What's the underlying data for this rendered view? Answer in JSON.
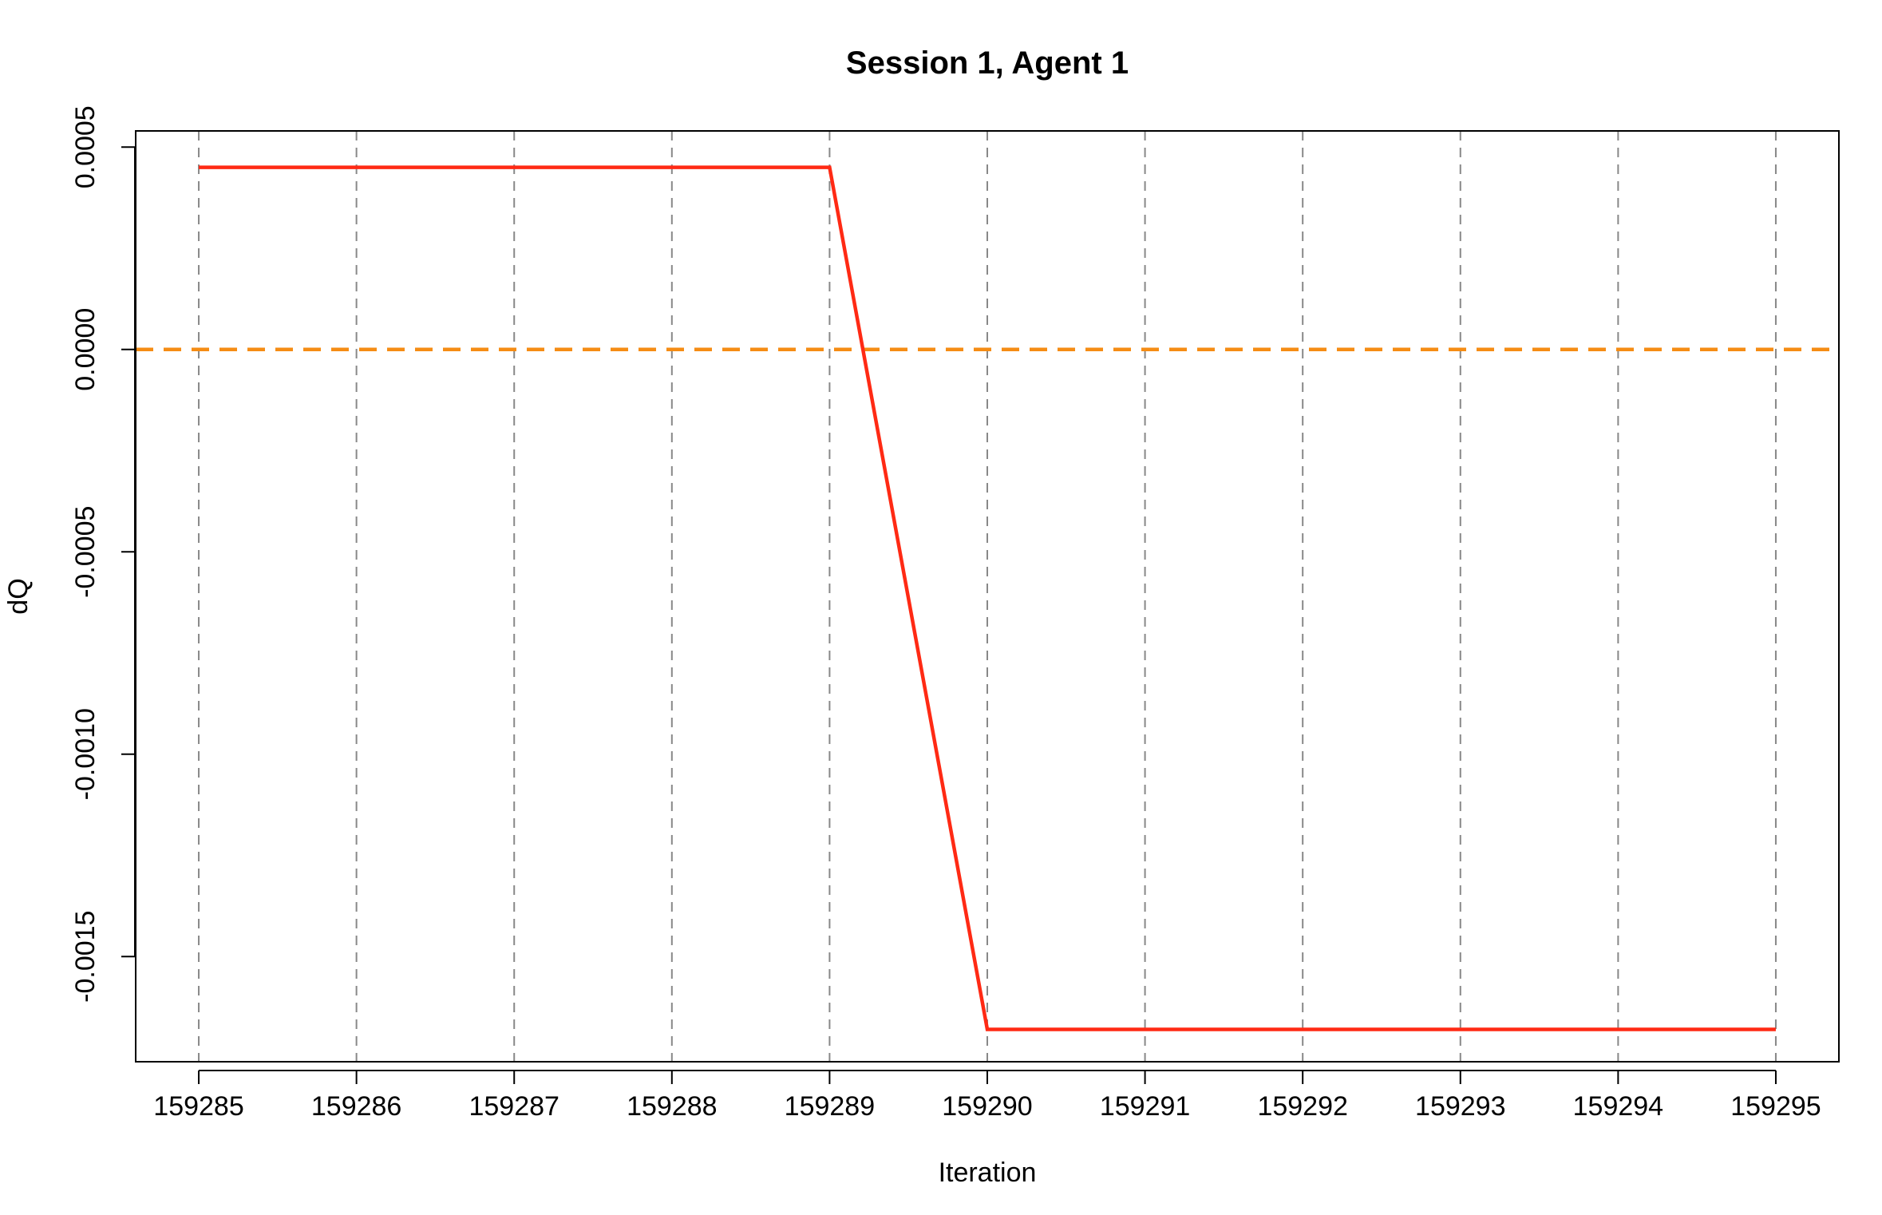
{
  "chart_data": {
    "type": "line",
    "title": "Session 1, Agent 1",
    "xlabel": "Iteration",
    "ylabel": "dQ",
    "x": [
      159285,
      159286,
      159287,
      159288,
      159289,
      159290,
      159291,
      159292,
      159293,
      159294,
      159295
    ],
    "series": [
      {
        "values": [
          0.00045,
          0.00045,
          0.00045,
          0.00045,
          0.00045,
          -0.00168,
          -0.00168,
          -0.00168,
          -0.00168,
          -0.00168,
          -0.00168
        ],
        "color": "#ff2a14"
      }
    ],
    "xlim": [
      159284.6,
      159295.4
    ],
    "ylim": [
      -0.00176,
      0.00054
    ],
    "xticks": [
      159285,
      159286,
      159287,
      159288,
      159289,
      159290,
      159291,
      159292,
      159293,
      159294,
      159295
    ],
    "xtick_labels": [
      "159285",
      "159286",
      "159287",
      "159288",
      "159289",
      "159290",
      "159291",
      "159292",
      "159293",
      "159294",
      "159295"
    ],
    "yticks": [
      0.0005,
      0.0,
      -0.0005,
      -0.001,
      -0.0015
    ],
    "ytick_labels": [
      "0.0005",
      "0.0000",
      "-0.0005",
      "-0.0010",
      "-0.0015"
    ],
    "vertical_reference_lines": [
      159285,
      159286,
      159287,
      159288,
      159289,
      159290,
      159291,
      159292,
      159293,
      159294,
      159295
    ],
    "vertical_reference_color": "#888888",
    "horizontal_reference_line": 0.0,
    "horizontal_reference_color": "#f58c14",
    "grid": false,
    "legend": "none"
  }
}
